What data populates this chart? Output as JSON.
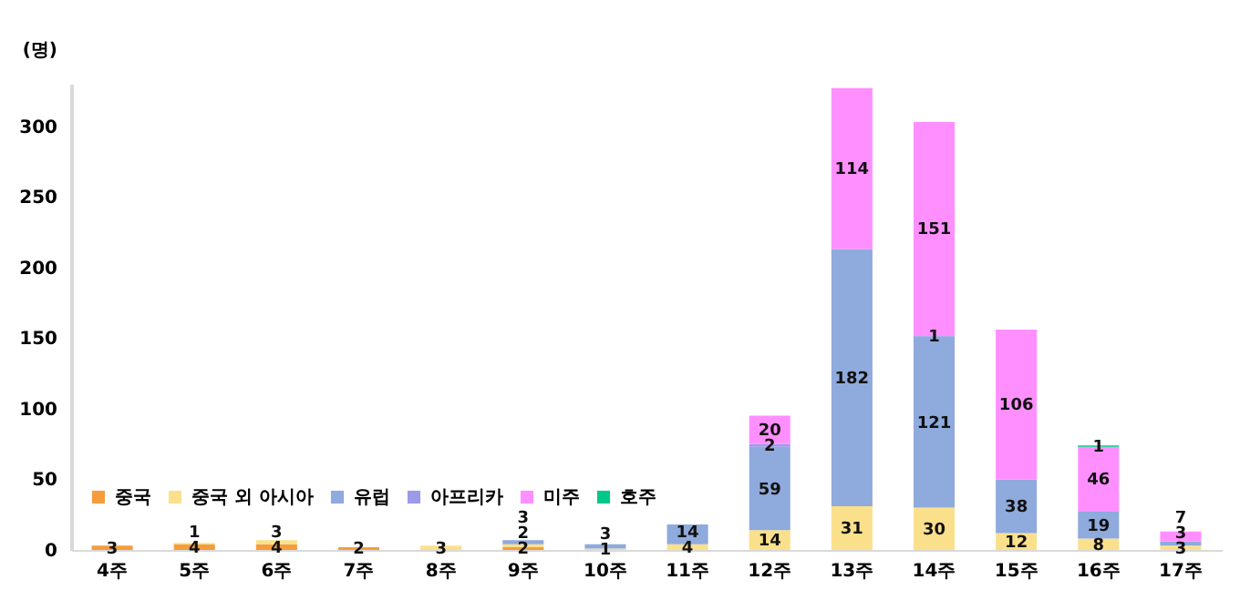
{
  "chart_data": {
    "type": "bar",
    "stacked": true,
    "ylabel": "(명)",
    "categories": [
      "4주",
      "5주",
      "6주",
      "7주",
      "8주",
      "9주",
      "10주",
      "11주",
      "12주",
      "13주",
      "14주",
      "15주",
      "16주",
      "17주"
    ],
    "series": [
      {
        "name": "중국",
        "color": "#f59d3d",
        "values": [
          3,
          4,
          4,
          2,
          null,
          2,
          null,
          null,
          null,
          null,
          null,
          null,
          null,
          null
        ]
      },
      {
        "name": "중국 외 아시아",
        "color": "#fbe08c",
        "values": [
          null,
          1,
          3,
          null,
          3,
          2,
          1,
          4,
          14,
          31,
          30,
          12,
          8,
          3
        ]
      },
      {
        "name": "유럽",
        "color": "#8faadc",
        "values": [
          null,
          null,
          null,
          null,
          null,
          3,
          3,
          14,
          59,
          182,
          121,
          38,
          19,
          3
        ]
      },
      {
        "name": "아프리카",
        "color": "#9b9be8",
        "values": [
          null,
          null,
          null,
          null,
          null,
          null,
          null,
          null,
          2,
          null,
          1,
          null,
          null,
          null
        ]
      },
      {
        "name": "미주",
        "color": "#ff8fff",
        "values": [
          null,
          null,
          null,
          null,
          null,
          null,
          null,
          null,
          20,
          114,
          151,
          106,
          46,
          7
        ]
      },
      {
        "name": "호주",
        "color": "#00c88c",
        "values": [
          null,
          null,
          null,
          null,
          null,
          null,
          null,
          null,
          null,
          null,
          null,
          null,
          1,
          null
        ]
      }
    ],
    "ylim": [
      0,
      330
    ],
    "yticks": [
      0,
      50,
      100,
      150,
      200,
      250,
      300
    ],
    "grid": false,
    "legend": "bottom left",
    "data_labels": true
  }
}
